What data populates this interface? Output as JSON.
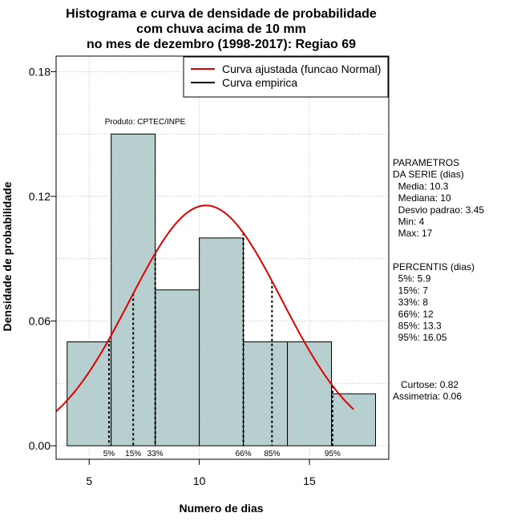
{
  "chart_data": {
    "type": "bar",
    "title_lines": [
      "Histograma e curva de densidade de probabilidade",
      "com chuva acima de 10 mm",
      "no mes de dezembro (1998-2017): Regiao 69"
    ],
    "xlabel": "Numero de dias",
    "ylabel": "Densidade de probabilidade",
    "xlim": [
      3.5,
      18.6
    ],
    "ylim": [
      -0.0065,
      0.1875
    ],
    "x_ticks": [
      5,
      10,
      15
    ],
    "y_ticks": [
      0.0,
      0.06,
      0.12,
      0.18
    ],
    "y_tick_labels": [
      "0.00",
      "0.06",
      "0.12",
      "0.18"
    ],
    "grid": true,
    "histogram": {
      "breaks": [
        4,
        6,
        8,
        10,
        12,
        14,
        16,
        18
      ],
      "density": [
        0.05,
        0.15,
        0.075,
        0.1,
        0.05,
        0.05,
        0.025
      ]
    },
    "normal_curve": {
      "mean": 10.3,
      "sd": 3.45,
      "x_range": [
        3.5,
        17
      ]
    },
    "percentile_lines": [
      {
        "x": 5.9,
        "label": "5%"
      },
      {
        "x": 7,
        "label": "15%"
      },
      {
        "x": 8,
        "label": "33%"
      },
      {
        "x": 12,
        "label": "66%"
      },
      {
        "x": 13.3,
        "label": "85%"
      },
      {
        "x": 16.05,
        "label": "95%"
      }
    ],
    "legend": {
      "position": "top-right",
      "entries": [
        {
          "label": "Curva ajustada (funcao Normal)",
          "color": "#e00000"
        },
        {
          "label": "Curva empirica",
          "color": "#000000"
        }
      ]
    },
    "annotation": "Produto: CPTEC/INPE",
    "colors": {
      "bars": "#b8cfcf",
      "curve": "#e00000",
      "grid": "#bebebe"
    }
  },
  "side_panel": {
    "parametros_lines": [
      "PARAMETROS",
      "DA SERIE (dias)",
      "  Media: 10.3",
      "  Mediana: 10",
      "  Desvio padrao: 3.45",
      "  Min: 4",
      "  Max: 17"
    ],
    "percentis_lines": [
      "PERCENTIS (dias)",
      "  5%: 5.9",
      "  15%: 7",
      "  33%: 8",
      "  66%: 12",
      "  85%: 13.3",
      "  95%: 16.05"
    ],
    "shape_lines": [
      "   Curtose: 0.82",
      "Assimetria: 0.06"
    ]
  }
}
